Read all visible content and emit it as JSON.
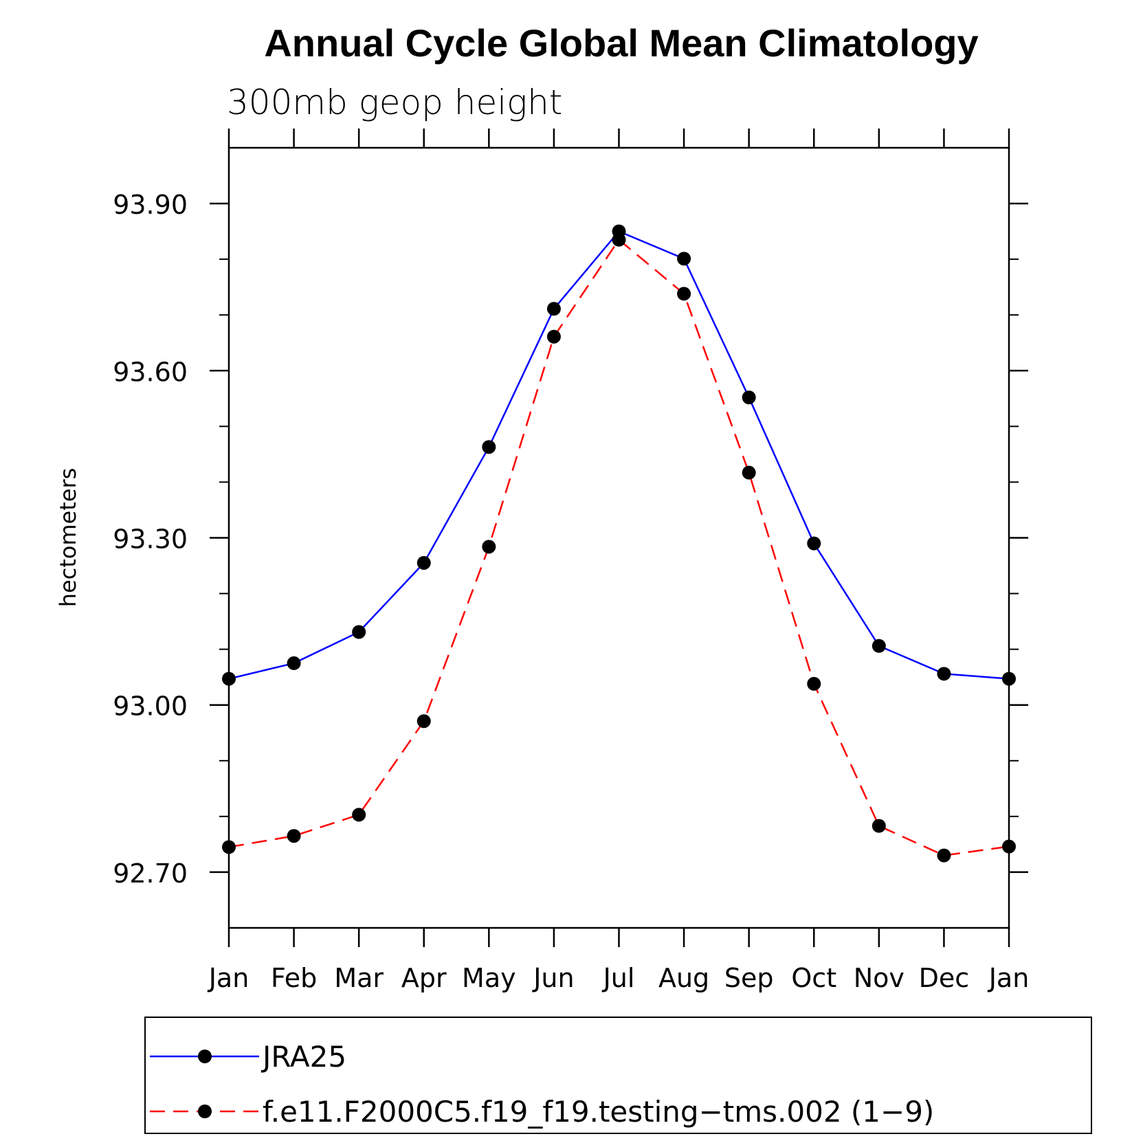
{
  "chart_data": {
    "type": "line",
    "title": "Annual Cycle Global Mean Climatology",
    "subtitle": "300mb geop height",
    "ylabel": "hectometers",
    "xlabel": "",
    "categories": [
      "Jan",
      "Feb",
      "Mar",
      "Apr",
      "May",
      "Jun",
      "Jul",
      "Aug",
      "Sep",
      "Oct",
      "Nov",
      "Dec",
      "Jan"
    ],
    "ylim": [
      92.6,
      94.0
    ],
    "yticks": [
      "92.70",
      "93.00",
      "93.30",
      "93.60",
      "93.90"
    ],
    "series": [
      {
        "name": "JRA25",
        "color": "#0000ff",
        "dash": "solid",
        "values": [
          93.047,
          93.075,
          93.131,
          93.255,
          93.463,
          93.711,
          93.85,
          93.801,
          93.552,
          93.29,
          93.106,
          93.056,
          93.047
        ]
      },
      {
        "name": "f.e11.F2000C5.f19_f19.testing−tms.002 (1−9)",
        "color": "#ff0000",
        "dash": "dashed",
        "values": [
          92.745,
          92.765,
          92.803,
          92.971,
          93.284,
          93.661,
          93.835,
          93.738,
          93.417,
          93.038,
          92.783,
          92.73,
          92.746
        ]
      }
    ],
    "grid": false,
    "legend": "bottom"
  }
}
